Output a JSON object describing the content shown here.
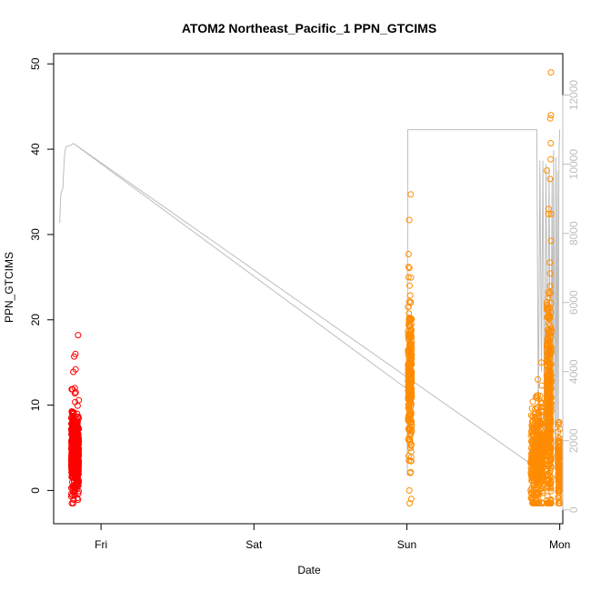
{
  "chart_data": {
    "type": "scatter",
    "title": "ATOM2 Northeast_Pacific_1 PPN_GTCIMS",
    "xlabel": "Date",
    "ylabel": "PPN_GTCIMS",
    "x_ticks": [
      "Fri",
      "Sat",
      "Sun",
      "Mon"
    ],
    "x_range_days": [
      -0.31,
      3.02
    ],
    "ylim": [
      -3.9,
      51.2
    ],
    "y_ticks": [
      0,
      10,
      20,
      30,
      40,
      50
    ],
    "y2lim": [
      -400,
      13200
    ],
    "y2_ticks": [
      0,
      2000,
      4000,
      6000,
      8000,
      10000,
      12000
    ],
    "grid": false,
    "legend": "none",
    "colors": {
      "points_fri": "#ff0000",
      "points_later": "#ff8c00",
      "secondary_line": "#bdbdbd",
      "axis": "#000000",
      "right_axis": "#bdbdbd"
    },
    "series": [
      {
        "color": "#ff0000",
        "clusters": [
          {
            "x_center": -0.17,
            "x_spread": 0.025,
            "y_mean": 4.5,
            "y_sd": 2.3,
            "count": 520,
            "outliers": [
              14.2,
              13.9,
              16.0,
              15.7,
              18.2,
              12.0,
              11.5,
              -0.7
            ]
          }
        ]
      },
      {
        "color": "#ff8c00",
        "clusters": [
          {
            "x_center": 2.02,
            "x_spread": 0.012,
            "y_mean": 13.5,
            "y_sd": 4.5,
            "count": 260,
            "outliers": [
              34.7,
              31.7,
              27.7,
              26.2,
              24.0,
              -1.0
            ]
          },
          {
            "x_center": 2.85,
            "x_spread": 0.04,
            "y_mean": 4.0,
            "y_sd": 3.0,
            "count": 420,
            "outliers": [
              13.0,
              15.0,
              -1.5
            ]
          },
          {
            "x_center": 2.93,
            "x_spread": 0.015,
            "y_mean": 10.0,
            "y_sd": 7.0,
            "count": 420,
            "outliers": [
              49.0,
              44.0,
              43.6,
              40.7,
              38.8,
              37.5,
              36.5,
              33.0
            ]
          },
          {
            "x_center": 2.995,
            "x_spread": 0.006,
            "y_mean": 2.5,
            "y_sd": 2.0,
            "count": 140,
            "outliers": [
              8.0,
              -1.5
            ]
          }
        ]
      }
    ],
    "secondary_line": {
      "axis": "right",
      "color": "#bdbdbd",
      "x": [
        -0.27,
        -0.265,
        -0.26,
        -0.25,
        -0.24,
        -0.235,
        -0.23,
        -0.2,
        -0.18,
        2.0,
        2.003,
        2.006,
        2.03,
        2.05,
        2.06,
        2.07,
        2.1,
        2.5,
        2.8,
        2.85,
        2.86,
        2.87,
        2.88,
        2.89,
        2.9,
        2.91,
        2.92,
        2.93,
        2.94,
        2.95,
        2.955,
        2.96,
        2.97,
        2.975,
        2.98,
        2.985,
        2.99,
        2.995,
        3.0
      ],
      "y": [
        8300,
        9000,
        9200,
        9300,
        10200,
        10400,
        10500,
        10550,
        10600,
        3500,
        1000,
        11000,
        11000,
        11000,
        11000,
        11000,
        11000,
        11000,
        11000,
        11000,
        2500,
        10100,
        4000,
        10100,
        2000,
        10000,
        3000,
        9900,
        1500,
        9600,
        2000,
        10400,
        1200,
        10200,
        2500,
        9800,
        1500,
        10300,
        11000
      ]
    },
    "gap_line": {
      "axis": "right",
      "color": "#bdbdbd",
      "x": [
        -0.18,
        2.82
      ],
      "y": [
        10600,
        1300
      ]
    }
  }
}
